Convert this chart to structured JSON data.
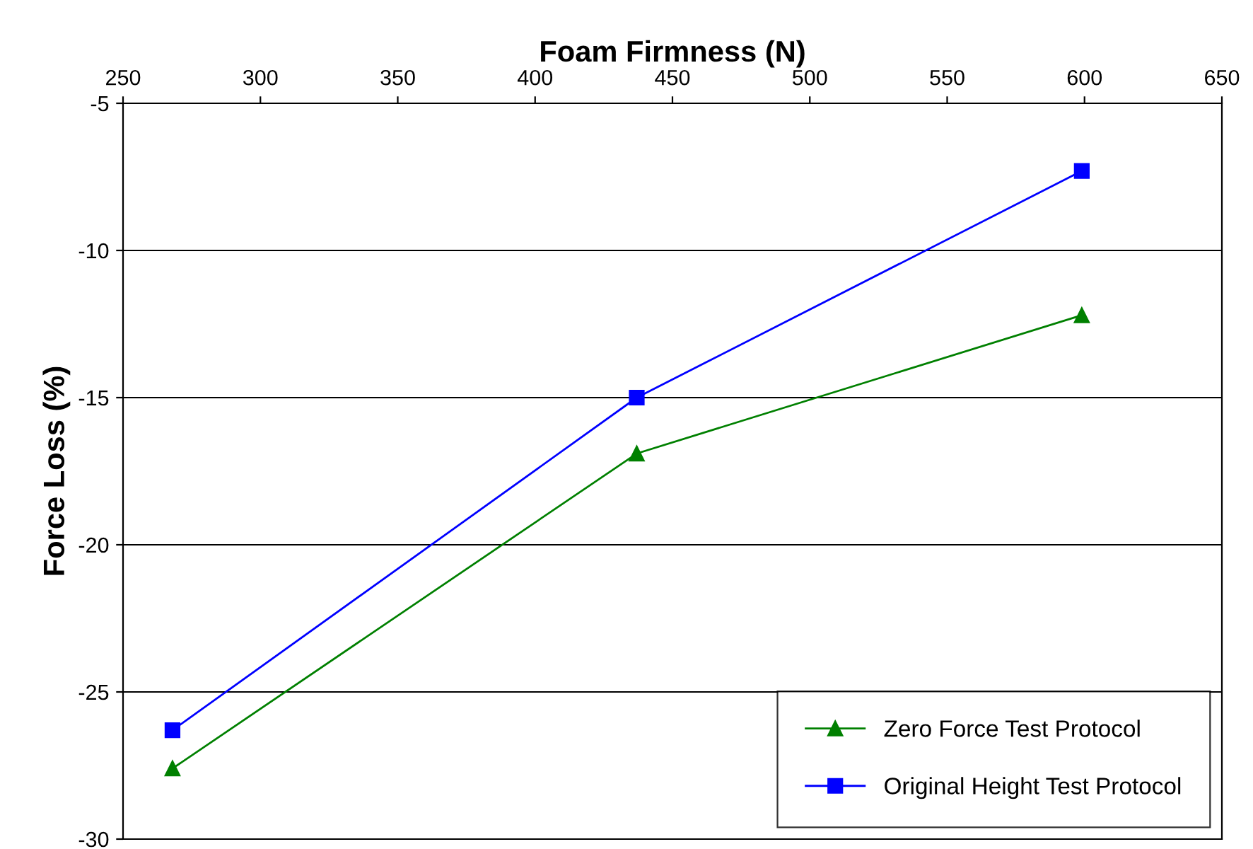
{
  "chart_data": {
    "type": "line",
    "xlabel": "Foam Firmness (N)",
    "ylabel": "Force Loss (%)",
    "x": [
      268,
      437,
      599
    ],
    "series": [
      {
        "name": "Zero Force Test Protocol",
        "color": "#008000",
        "marker": "triangle",
        "values": [
          -27.6,
          -16.9,
          -12.2
        ]
      },
      {
        "name": "Original Height Test Protocol",
        "color": "#0000ff",
        "marker": "square",
        "values": [
          -26.3,
          -15.0,
          -7.3
        ]
      }
    ],
    "xlim": [
      250,
      650
    ],
    "xticks": [
      250,
      300,
      350,
      400,
      450,
      500,
      550,
      600,
      650
    ],
    "ylim": [
      -30,
      -5
    ],
    "yticks": [
      -30,
      -25,
      -20,
      -15,
      -10,
      -5
    ],
    "grid": "y",
    "legend": "bottom right",
    "line_style": "solid"
  }
}
